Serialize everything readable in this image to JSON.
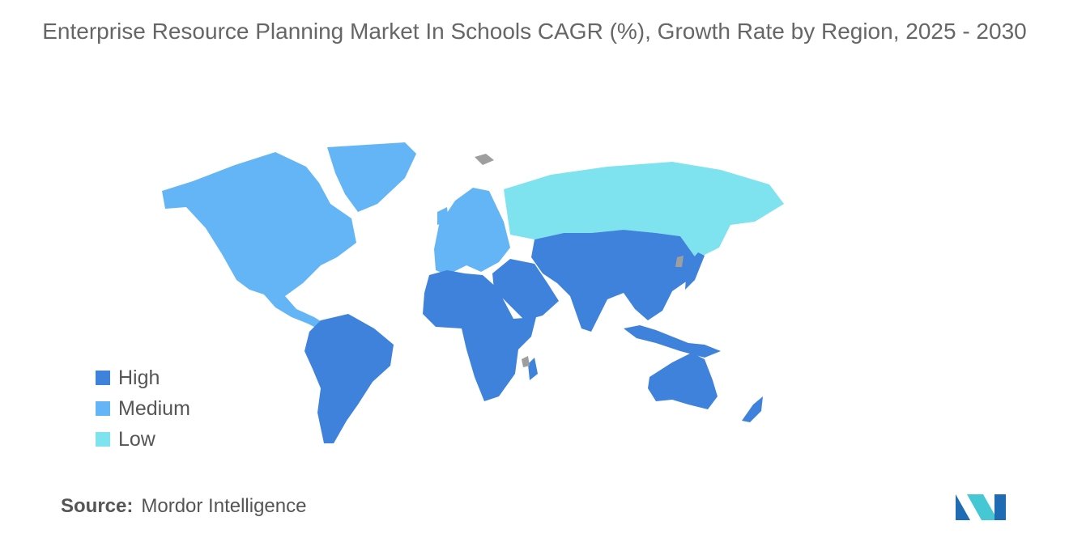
{
  "title": "Enterprise Resource Planning Market In Schools CAGR (%), Growth Rate by Region, 2025 - 2030",
  "legend": {
    "items": [
      {
        "label": "High",
        "color": "#3f82dc"
      },
      {
        "label": "Medium",
        "color": "#63b5f5"
      },
      {
        "label": "Low",
        "color": "#7ee3ef"
      }
    ]
  },
  "regions": [
    {
      "name": "North America",
      "level": "Medium"
    },
    {
      "name": "Greenland",
      "level": "Medium"
    },
    {
      "name": "Europe",
      "level": "Medium"
    },
    {
      "name": "Russia",
      "level": "Low"
    },
    {
      "name": "Asia",
      "level": "High"
    },
    {
      "name": "Middle East",
      "level": "High"
    },
    {
      "name": "Africa",
      "level": "High"
    },
    {
      "name": "South America",
      "level": "High"
    },
    {
      "name": "Australia",
      "level": "High"
    },
    {
      "name": "Indonesia",
      "level": "High"
    },
    {
      "name": "New Zealand",
      "level": "High"
    }
  ],
  "colors": {
    "no_data": "#9e9e9e"
  },
  "source": {
    "label": "Source:",
    "value": "Mordor Intelligence"
  },
  "logo": {
    "icon": "mordor-intelligence-logo",
    "colors": [
      "#1f6bb4",
      "#46c7d4"
    ]
  }
}
